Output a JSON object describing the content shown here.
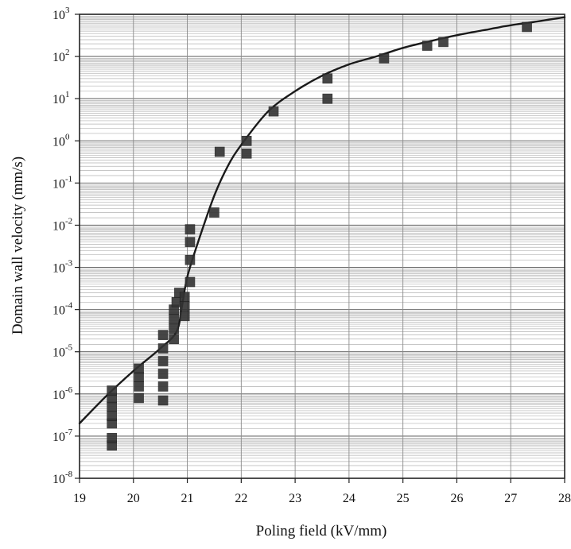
{
  "chart_data": {
    "type": "scatter",
    "title": "",
    "xlabel": "Poling field (kV/mm)",
    "ylabel": "Domain wall velocity (mm/s)",
    "xlim": [
      19,
      28
    ],
    "ylim": [
      1e-08,
      1000
    ],
    "y_scale": "log",
    "grid": true,
    "x_ticks": [
      "19",
      "20",
      "21",
      "22",
      "23",
      "24",
      "25",
      "26",
      "27",
      "28"
    ],
    "y_ticks": [
      {
        "base": "10",
        "exp": "-8"
      },
      {
        "base": "10",
        "exp": "-7"
      },
      {
        "base": "10",
        "exp": "-6"
      },
      {
        "base": "10",
        "exp": "-5"
      },
      {
        "base": "10",
        "exp": "-4"
      },
      {
        "base": "10",
        "exp": "-3"
      },
      {
        "base": "10",
        "exp": "-2"
      },
      {
        "base": "10",
        "exp": "-1"
      },
      {
        "base": "10",
        "exp": "0"
      },
      {
        "base": "10",
        "exp": "1"
      },
      {
        "base": "10",
        "exp": "2"
      },
      {
        "base": "10",
        "exp": "3"
      }
    ],
    "colors": {
      "marker": "#333333",
      "curve": "#1a1a1a",
      "grid": "#b3b3b3",
      "axis": "#222222"
    },
    "series": [
      {
        "type": "scatter",
        "marker": "square",
        "points": [
          {
            "x": 19.6,
            "y": 6e-08
          },
          {
            "x": 19.6,
            "y": 9e-08
          },
          {
            "x": 19.6,
            "y": 2e-07
          },
          {
            "x": 19.6,
            "y": 3e-07
          },
          {
            "x": 19.6,
            "y": 5e-07
          },
          {
            "x": 19.6,
            "y": 8e-07
          },
          {
            "x": 19.6,
            "y": 1.2e-06
          },
          {
            "x": 20.1,
            "y": 8e-07
          },
          {
            "x": 20.1,
            "y": 1.5e-06
          },
          {
            "x": 20.1,
            "y": 2.5e-06
          },
          {
            "x": 20.1,
            "y": 4e-06
          },
          {
            "x": 20.55,
            "y": 7e-07
          },
          {
            "x": 20.55,
            "y": 1.5e-06
          },
          {
            "x": 20.55,
            "y": 3e-06
          },
          {
            "x": 20.55,
            "y": 6e-06
          },
          {
            "x": 20.55,
            "y": 1.2e-05
          },
          {
            "x": 20.55,
            "y": 2.5e-05
          },
          {
            "x": 20.75,
            "y": 2e-05
          },
          {
            "x": 20.75,
            "y": 3.5e-05
          },
          {
            "x": 20.75,
            "y": 6e-05
          },
          {
            "x": 20.75,
            "y": 0.0001
          },
          {
            "x": 20.8,
            "y": 0.00015
          },
          {
            "x": 20.85,
            "y": 0.00025
          },
          {
            "x": 20.95,
            "y": 7e-05
          },
          {
            "x": 20.95,
            "y": 0.00012
          },
          {
            "x": 20.95,
            "y": 0.0002
          },
          {
            "x": 21.05,
            "y": 0.00045
          },
          {
            "x": 21.05,
            "y": 0.0015
          },
          {
            "x": 21.05,
            "y": 0.004
          },
          {
            "x": 21.05,
            "y": 0.008
          },
          {
            "x": 21.5,
            "y": 0.02
          },
          {
            "x": 21.6,
            "y": 0.55
          },
          {
            "x": 22.1,
            "y": 0.5
          },
          {
            "x": 22.1,
            "y": 1.0
          },
          {
            "x": 22.6,
            "y": 5.0
          },
          {
            "x": 23.6,
            "y": 10.0
          },
          {
            "x": 23.6,
            "y": 30.0
          },
          {
            "x": 24.65,
            "y": 90.0
          },
          {
            "x": 25.45,
            "y": 180.0
          },
          {
            "x": 25.75,
            "y": 220.0
          },
          {
            "x": 27.3,
            "y": 500.0
          }
        ]
      },
      {
        "type": "line",
        "points": [
          {
            "x": 19.0,
            "y": 2e-07
          },
          {
            "x": 19.5,
            "y": 9e-07
          },
          {
            "x": 20.0,
            "y": 3.5e-06
          },
          {
            "x": 20.5,
            "y": 1.2e-05
          },
          {
            "x": 20.8,
            "y": 3e-05
          },
          {
            "x": 20.9,
            "y": 0.00012
          },
          {
            "x": 21.0,
            "y": 0.0006
          },
          {
            "x": 21.2,
            "y": 0.004
          },
          {
            "x": 21.5,
            "y": 0.05
          },
          {
            "x": 21.75,
            "y": 0.25
          },
          {
            "x": 22.0,
            "y": 0.8
          },
          {
            "x": 22.5,
            "y": 5.0
          },
          {
            "x": 23.0,
            "y": 15.0
          },
          {
            "x": 23.5,
            "y": 35.0
          },
          {
            "x": 24.0,
            "y": 65.0
          },
          {
            "x": 24.5,
            "y": 100.0
          },
          {
            "x": 25.0,
            "y": 160.0
          },
          {
            "x": 25.5,
            "y": 230.0
          },
          {
            "x": 26.0,
            "y": 320.0
          },
          {
            "x": 26.5,
            "y": 420.0
          },
          {
            "x": 27.0,
            "y": 550.0
          },
          {
            "x": 27.5,
            "y": 680.0
          },
          {
            "x": 28.0,
            "y": 850.0
          }
        ]
      }
    ]
  }
}
